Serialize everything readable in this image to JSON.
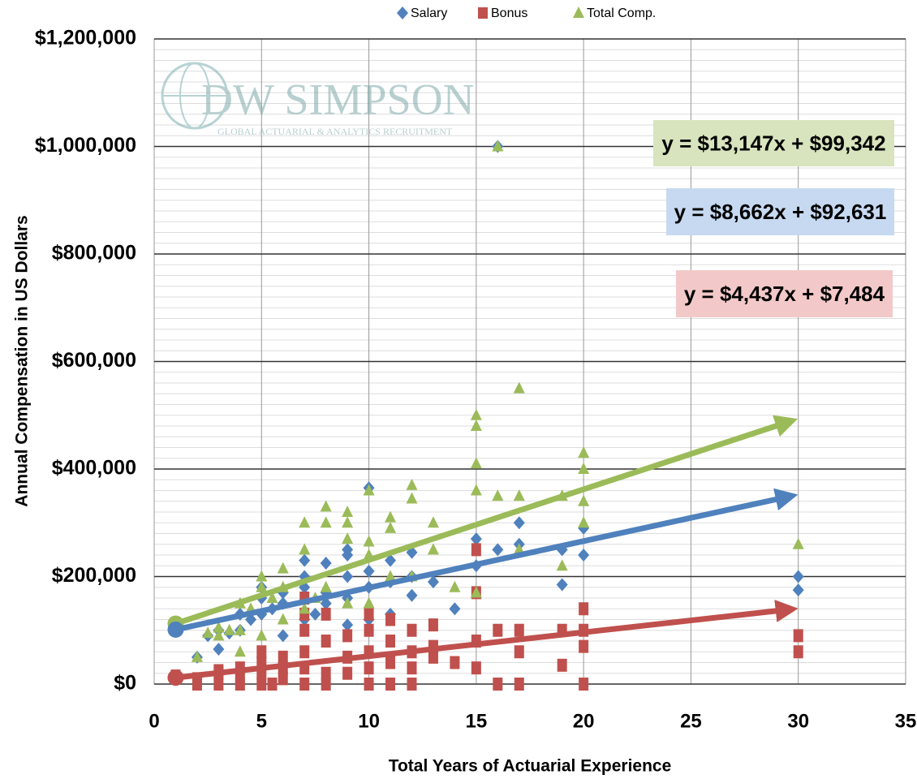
{
  "chart_data": {
    "type": "scatter",
    "logo": {
      "name": "DW SIMPSON",
      "tagline": "GLOBAL ACTUARIAL & ANALYTICS RECRUITMENT"
    },
    "xlabel": "Total Years of Actuarial Experience",
    "ylabel": "Annual Compensation in US Dollars",
    "xlim": [
      0,
      35
    ],
    "xticks": [
      0,
      5,
      10,
      15,
      20,
      25,
      30,
      35
    ],
    "ylim": [
      0,
      1200000
    ],
    "yticks": [
      {
        "value": 0,
        "label": "$0"
      },
      {
        "value": 200000,
        "label": "$200,000"
      },
      {
        "value": 400000,
        "label": "$400,000"
      },
      {
        "value": 600000,
        "label": "$600,000"
      },
      {
        "value": 800000,
        "label": "$800,000"
      },
      {
        "value": 1000000,
        "label": "$1,000,000"
      },
      {
        "value": 1200000,
        "label": "$1,200,000"
      }
    ],
    "yminor": 20000,
    "grid": true,
    "legend": "top",
    "series": [
      {
        "name": "Salary",
        "color": "#4f81bd",
        "marker": "diamond",
        "x": [
          1,
          2,
          2.5,
          3,
          3,
          3.5,
          4,
          4,
          4.5,
          5,
          5,
          5,
          5.5,
          6,
          6,
          6,
          7,
          7,
          7,
          7,
          7.5,
          8,
          8,
          8,
          9,
          9,
          9,
          9,
          9,
          10,
          10,
          10,
          10,
          11,
          11,
          11,
          12,
          12,
          12,
          13,
          14,
          15,
          15,
          16,
          16,
          17,
          17,
          19,
          19,
          20,
          20,
          30,
          30
        ],
        "values": [
          100000,
          50000,
          90000,
          65000,
          100000,
          95000,
          100000,
          130000,
          120000,
          130000,
          160000,
          180000,
          140000,
          90000,
          150000,
          170000,
          120000,
          180000,
          200000,
          230000,
          130000,
          150000,
          170000,
          225000,
          110000,
          160000,
          200000,
          240000,
          250000,
          120000,
          180000,
          210000,
          365000,
          130000,
          190000,
          230000,
          165000,
          200000,
          245000,
          190000,
          140000,
          220000,
          270000,
          250000,
          1000000,
          260000,
          300000,
          185000,
          250000,
          240000,
          290000,
          200000,
          175000
        ]
      },
      {
        "name": "Bonus",
        "color": "#c0504d",
        "marker": "square",
        "x": [
          1,
          2,
          2,
          3,
          3,
          3,
          4,
          4,
          4,
          5,
          5,
          5,
          5,
          5.5,
          6,
          6,
          6,
          7,
          7,
          7,
          7,
          7,
          7,
          8,
          8,
          8,
          8,
          9,
          9,
          9,
          10,
          10,
          10,
          10,
          10,
          11,
          11,
          11,
          11,
          12,
          12,
          12,
          12,
          13,
          13,
          13,
          14,
          15,
          15,
          15,
          15,
          16,
          16,
          17,
          17,
          17,
          19,
          19,
          20,
          20,
          20,
          20,
          30,
          30
        ],
        "values": [
          15000,
          0,
          10000,
          0,
          20000,
          25000,
          0,
          10000,
          30000,
          0,
          20000,
          40000,
          60000,
          0,
          10000,
          30000,
          50000,
          0,
          30000,
          60000,
          100000,
          130000,
          160000,
          0,
          20000,
          80000,
          130000,
          20000,
          50000,
          90000,
          0,
          30000,
          60000,
          100000,
          130000,
          0,
          40000,
          80000,
          120000,
          0,
          30000,
          60000,
          100000,
          50000,
          70000,
          110000,
          40000,
          30000,
          80000,
          170000,
          250000,
          0,
          100000,
          0,
          60000,
          100000,
          35000,
          100000,
          0,
          70000,
          100000,
          140000,
          60000,
          90000
        ]
      },
      {
        "name": "Total Comp.",
        "color": "#9bbb59",
        "marker": "triangle",
        "x": [
          1,
          2,
          2.5,
          3,
          3,
          3.5,
          4,
          4,
          4,
          4.5,
          5,
          5,
          5,
          5.5,
          6,
          6,
          6,
          7,
          7,
          7,
          7.5,
          8,
          8,
          8,
          9,
          9,
          9,
          9,
          10,
          10,
          10,
          10,
          11,
          11,
          11,
          12,
          12,
          12,
          13,
          13,
          14,
          15,
          15,
          15,
          15,
          15,
          16,
          16,
          17,
          17,
          17,
          19,
          19,
          20,
          20,
          20,
          20,
          30
        ],
        "values": [
          115000,
          50000,
          95000,
          90000,
          105000,
          100000,
          60000,
          100000,
          150000,
          140000,
          90000,
          180000,
          200000,
          160000,
          120000,
          180000,
          215000,
          140000,
          250000,
          300000,
          160000,
          180000,
          300000,
          330000,
          150000,
          270000,
          300000,
          320000,
          150000,
          240000,
          265000,
          360000,
          200000,
          290000,
          310000,
          200000,
          345000,
          370000,
          250000,
          300000,
          180000,
          170000,
          360000,
          410000,
          480000,
          500000,
          350000,
          1000000,
          250000,
          350000,
          550000,
          220000,
          350000,
          300000,
          340000,
          400000,
          430000,
          260000
        ]
      }
    ],
    "trendlines": [
      {
        "label": "y = $13,147x + $99,342",
        "slope": 13147,
        "intercept": 99342,
        "x": [
          1,
          30
        ],
        "color": "#9bbb59",
        "box": "#d7e4bd"
      },
      {
        "label": "y = $8,662x + $92,631",
        "slope": 8662,
        "intercept": 92631,
        "x": [
          1,
          30
        ],
        "color": "#4f81bd",
        "box": "#c6d9f1"
      },
      {
        "label": "y = $4,437x + $7,484",
        "slope": 4437,
        "intercept": 7484,
        "x": [
          1,
          30
        ],
        "color": "#c0504d",
        "box": "#f2c9c8"
      }
    ]
  }
}
